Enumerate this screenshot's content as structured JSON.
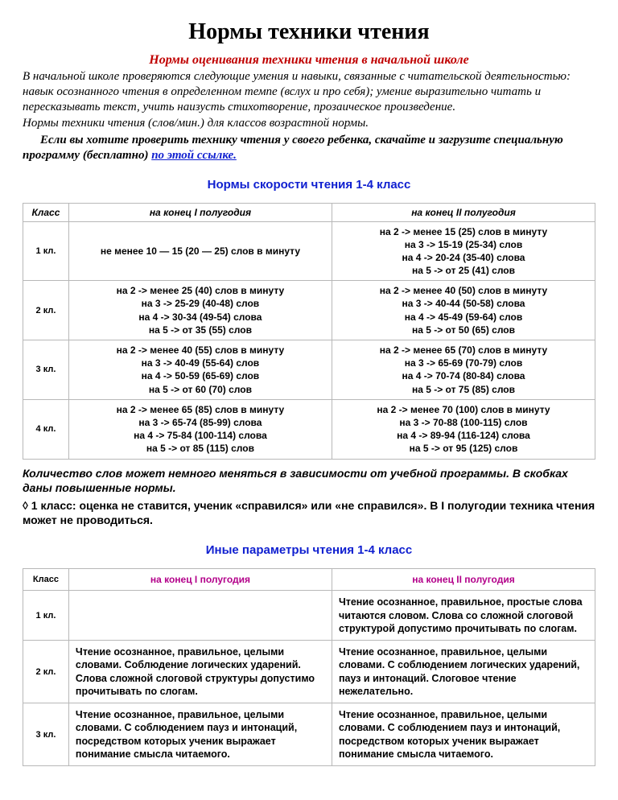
{
  "title": "Нормы техники чтения",
  "subtitle": "Нормы оценивания техники чтения в начальной школе",
  "intro_lines": [
    "В начальной школе проверяются следующие умения и навыки, связанные с читательской деятельностью: навык осознанного чтения в определенном темпе (вслух и про себя); умение выразительно читать и пересказывать текст, учить наизусть стихотворение, прозаическое произведение.",
    "Нормы техники чтения (слов/мин.) для классов возрастной нормы."
  ],
  "cta_text": "Если вы хотите проверить технику чтения у своего ребенка, скачайте и загрузите специальную программу (бесплатно) ",
  "cta_link_text": "по этой ссылке.",
  "section1_title": "Нормы скорости чтения 1-4 класс",
  "t1": {
    "h_class": "Класс",
    "h_c1": "на конец I полугодия",
    "h_c2": "на конец II полугодия",
    "rows": [
      {
        "kl": "1 кл.",
        "c1": "не менее 10 — 15 (20 — 25) слов в минуту",
        "c2": "на 2 ->   менее 15 (25) слов в минуту\nна 3 ->   15-19  (25-34) слов\nна 4 ->   20-24  (35-40) слова\nна 5 ->   от 25  (41) слов"
      },
      {
        "kl": "2 кл.",
        "c1": "на 2 ->   менее 25 (40) слов в минуту\nна 3 ->   25-29  (40-48) слов\nна 4 ->   30-34  (49-54) слова\nна 5 ->   от 35  (55) слов",
        "c2": "на 2 ->   менее 40 (50) слов в минуту\nна 3 ->   40-44  (50-58) слова\nна 4 ->   45-49 (59-64) слов\nна 5 ->   от 50  (65) слов"
      },
      {
        "kl": "3 кл.",
        "c1": "на 2 ->   менее 40 (55) слов в минуту\nна 3 ->   40-49  (55-64) слов\nна 4 ->   50-59  (65-69) слов\nна 5 ->   от 60  (70) слов",
        "c2": "на 2 ->   менее 65 (70) слов в минуту\nна 3 ->   65-69  (70-79) слов\nна 4 ->   70-74  (80-84) слова\nна 5 ->   от 75  (85) слов"
      },
      {
        "kl": "4 кл.",
        "c1": "на 2 ->   менее 65 (85) слов в минуту\nна 3 ->   65-74  (85-99) слова\nна 4 ->   75-84  (100-114) слова\nна 5 ->   от 85  (115) слов",
        "c2": "на 2 ->   менее 70 (100) слов в минуту\nна 3 ->   70-88  (100-115) слов\nна 4 ->   89-94  (116-124) слова\nна 5 ->   от 95  (125) слов"
      }
    ]
  },
  "note1": "Количество слов может немного меняться в зависимости от учебной программы. В скобках даны повышенные нормы.",
  "note2": "◊ 1 класс: оценка не ставится, ученик «справился» или «не справился». В I полугодии техника чтения может не проводиться.",
  "section2_title": "Иные параметры чтения 1-4 класс",
  "t2": {
    "h_class": "Класс",
    "h_c1": "на конец I полугодия",
    "h_c2": "на конец II полугодия",
    "rows": [
      {
        "kl": "1 кл.",
        "c1": "",
        "c2": "Чтение осознанное, правильное, простые слова читаются словом. Слова со сложной слоговой структурой допустимо прочитывать  по слогам."
      },
      {
        "kl": "2 кл.",
        "c1": "Чтение осознанное, правильное, целыми словами. Соблюдение логических ударений. Слова сложной слоговой структуры допустимо прочитывать по слогам.",
        "c2": "Чтение осознанное, правильное, целыми словами. С соблюдением логических ударений, пауз и интонаций. Слоговое чтение нежелательно."
      },
      {
        "kl": "3 кл.",
        "c1": "Чтение осознанное, правильное, целыми словами. С соблюдением пауз и интонаций, посредством которых ученик выражает понимание смысла читаемого.",
        "c2": "Чтение осознанное, правильное, целыми словами. С соблюдением пауз и интонаций, посредством которых ученик выражает понимание смысла читаемого."
      }
    ]
  }
}
